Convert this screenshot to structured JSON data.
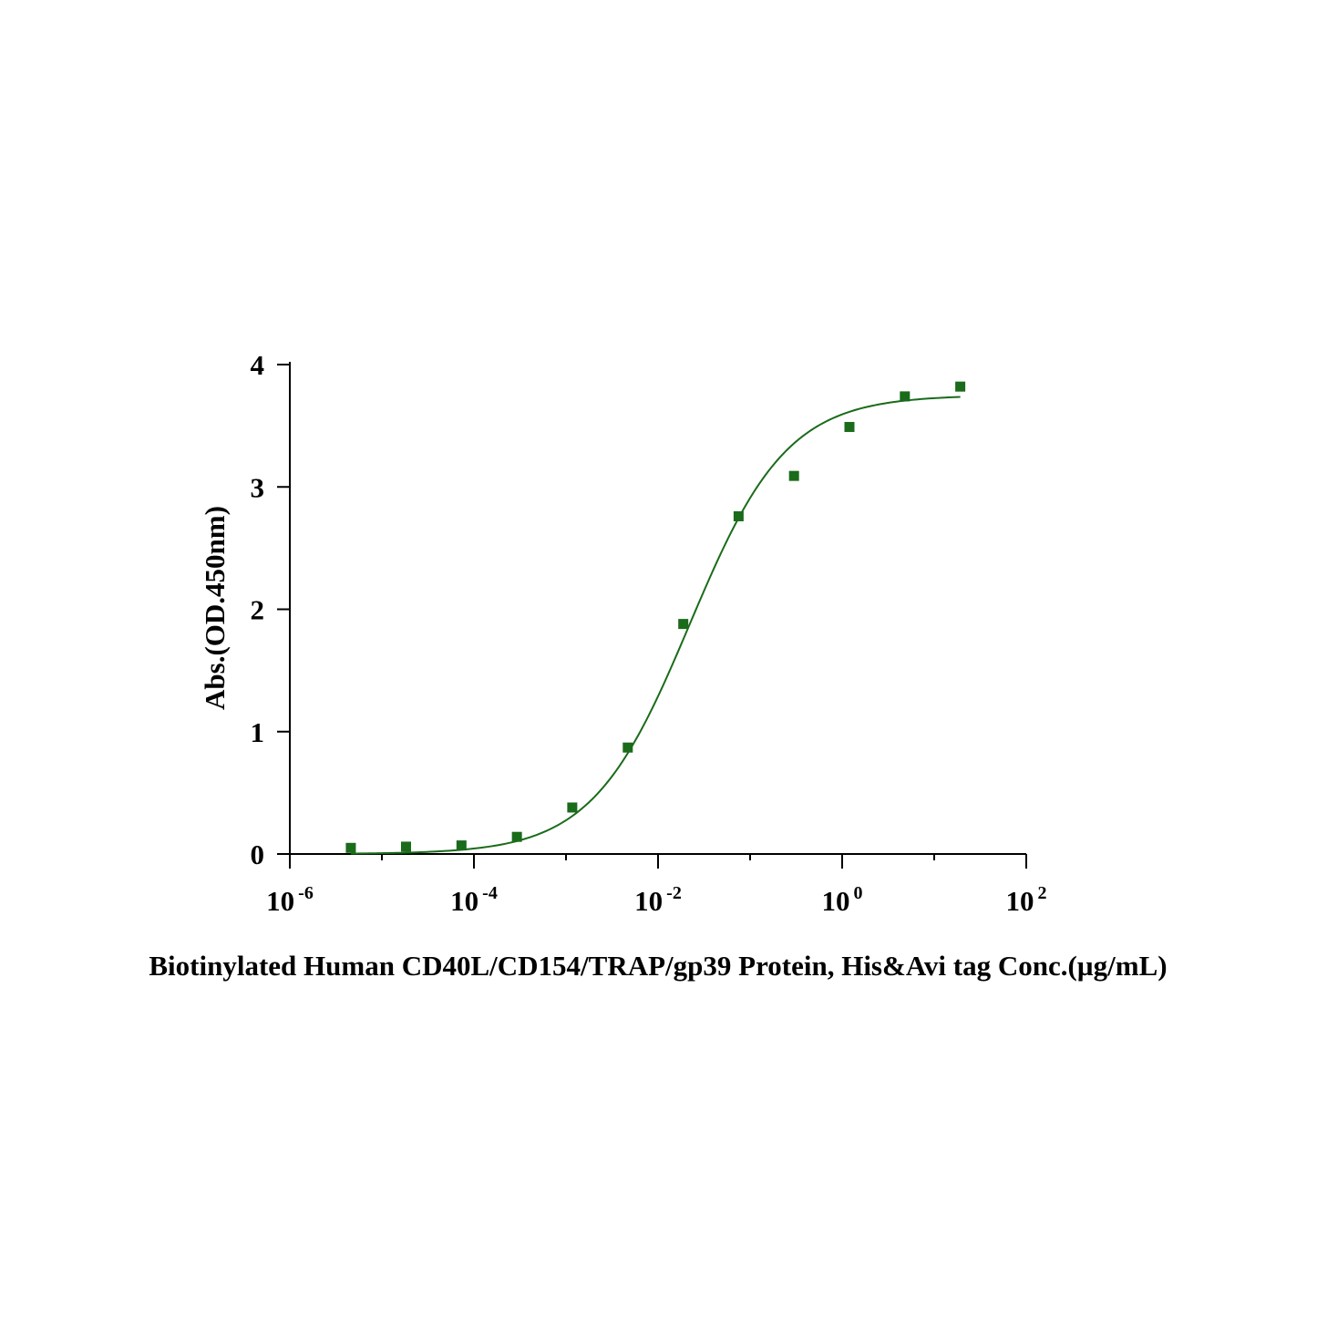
{
  "chart_data": {
    "type": "scatter",
    "xlabel": "Biotinylated Human CD40L/CD154/TRAP/gp39 Protein, His&Avi tag Conc.(µg/mL)",
    "ylabel": "Abs.(OD.450nm)",
    "x_scale": "log10",
    "xlim": [
      1e-06,
      100
    ],
    "ylim": [
      0,
      4
    ],
    "x_ticks": [
      {
        "value": 1e-06,
        "base": "10",
        "exp": "-6"
      },
      {
        "value": 0.0001,
        "base": "10",
        "exp": "-4"
      },
      {
        "value": 0.01,
        "base": "10",
        "exp": "-2"
      },
      {
        "value": 1,
        "base": "10",
        "exp": "0"
      },
      {
        "value": 100,
        "base": "10",
        "exp": "2"
      }
    ],
    "y_ticks": [
      0,
      1,
      2,
      3,
      4
    ],
    "color": "#1a6b1a",
    "series": [
      {
        "marker": "square",
        "x": [
          4.6e-06,
          1.83e-05,
          7.32e-05,
          0.000293,
          0.00117,
          0.00469,
          0.0188,
          0.075,
          0.3,
          1.2,
          4.8,
          19.2
        ],
        "y": [
          0.05,
          0.06,
          0.07,
          0.14,
          0.38,
          0.87,
          1.88,
          2.76,
          3.09,
          3.49,
          3.74,
          3.82
        ]
      }
    ],
    "fit": {
      "model": "4PL",
      "bottom": 0.0,
      "top": 3.75,
      "ec50": 0.022,
      "hill": 0.82,
      "x_range": [
        4.6e-06,
        19.2
      ]
    }
  }
}
